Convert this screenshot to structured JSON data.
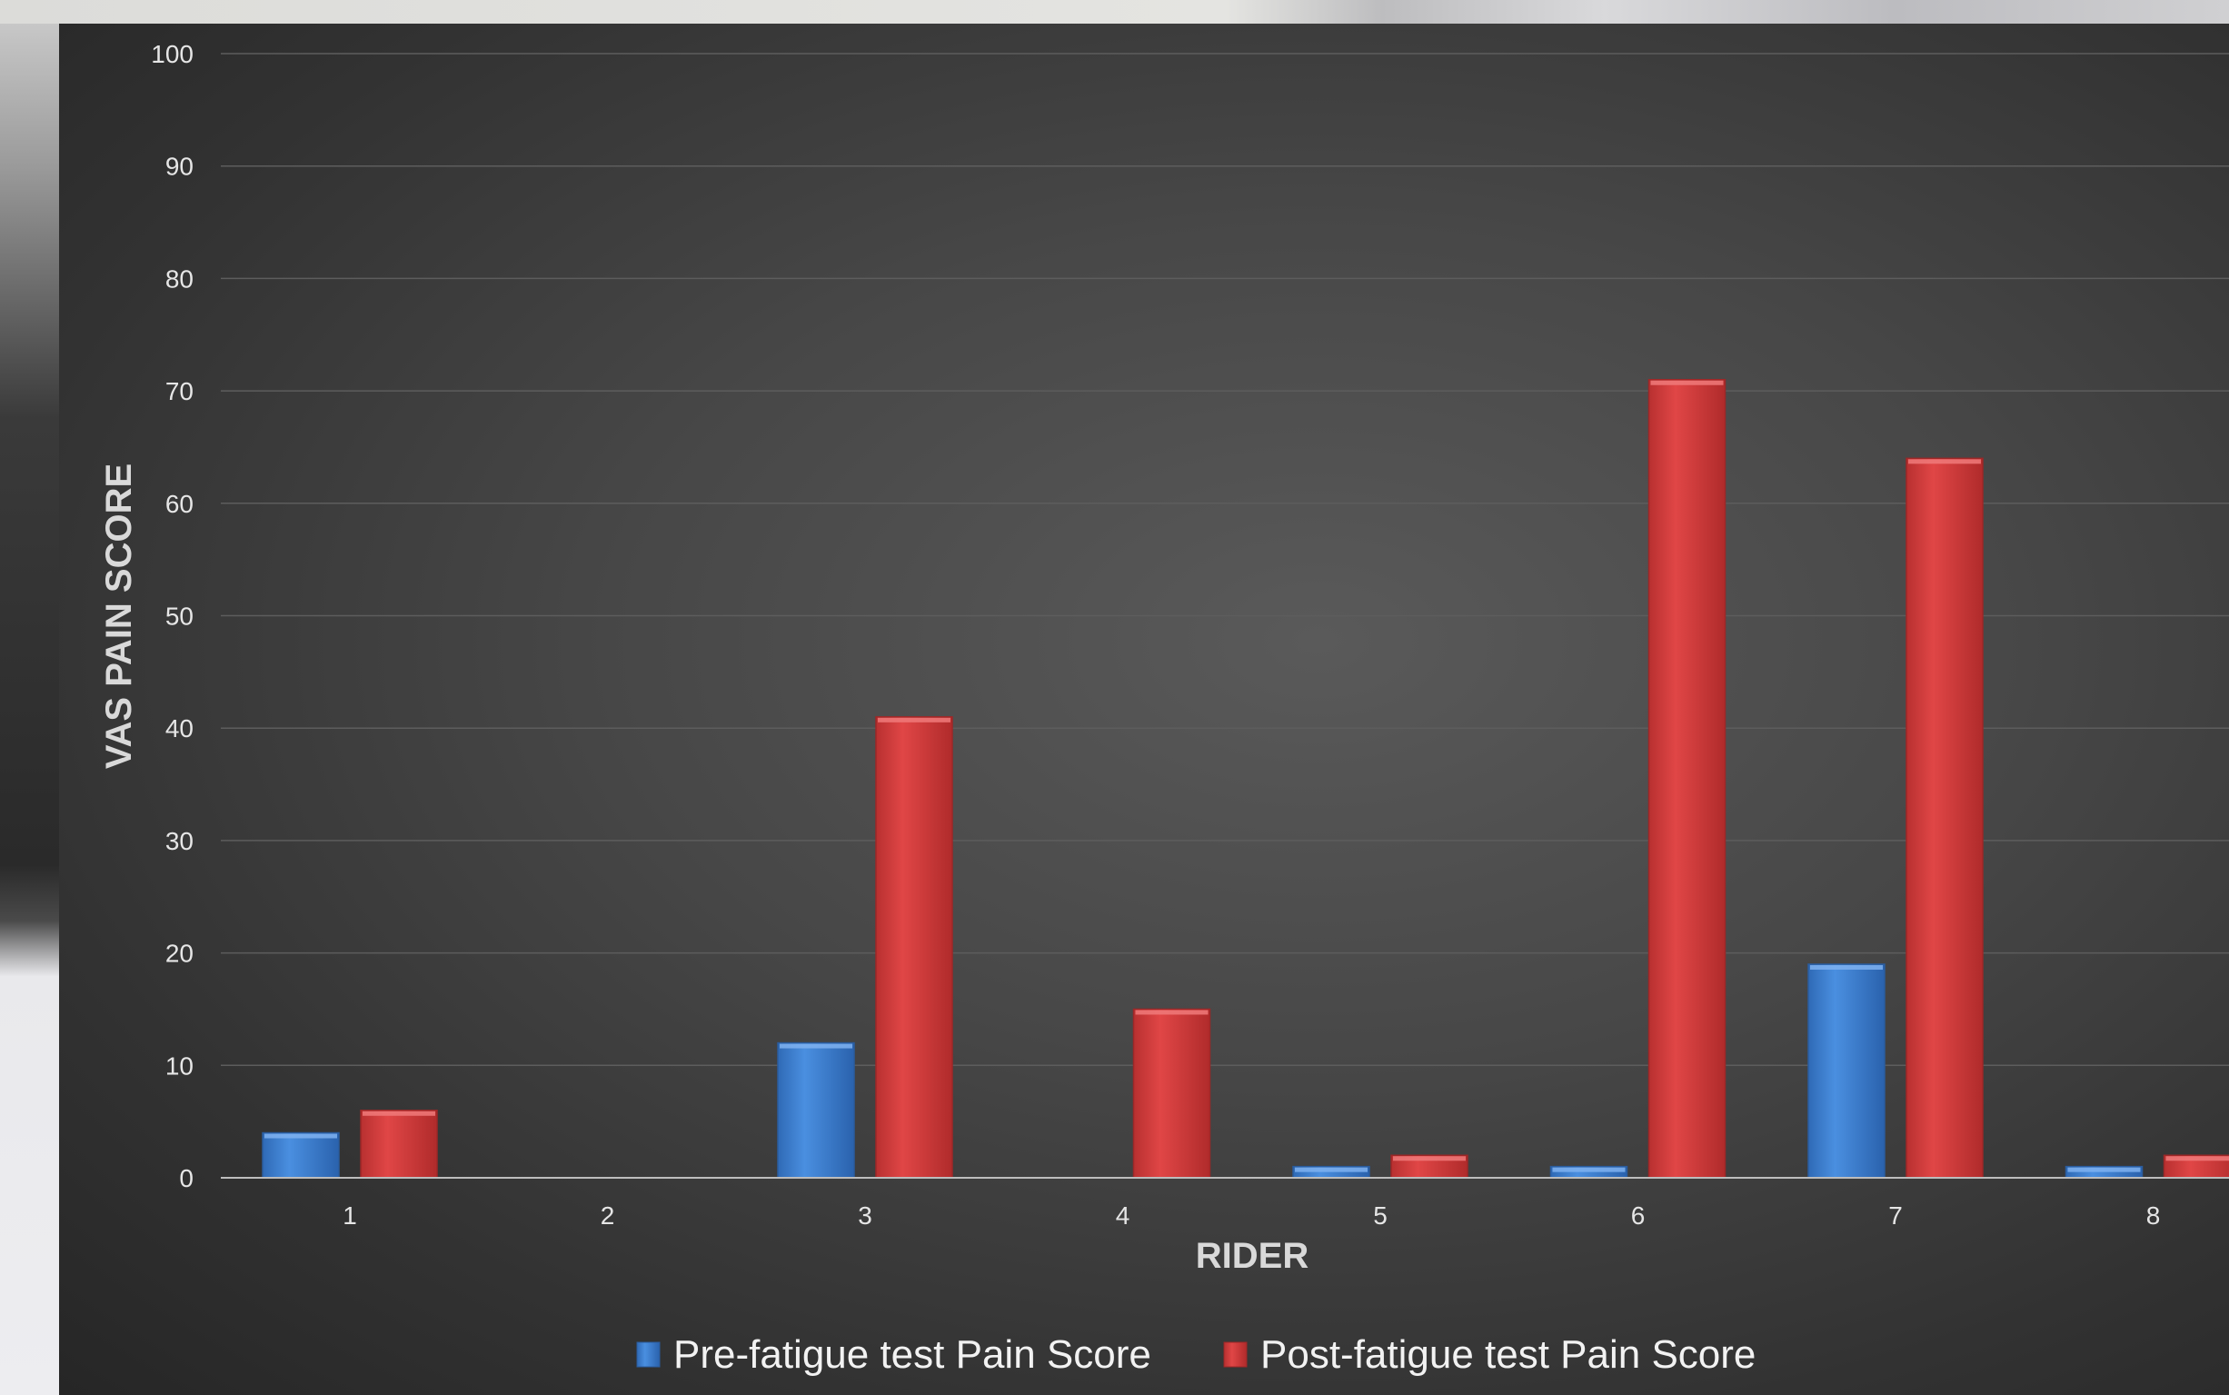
{
  "chart_data": {
    "type": "bar",
    "xlabel": "RIDER",
    "ylabel": "VAS PAIN SCORE",
    "ylim": [
      0,
      100
    ],
    "yticks": [
      0,
      10,
      20,
      30,
      40,
      50,
      60,
      70,
      80,
      90,
      100
    ],
    "categories": [
      "1",
      "2",
      "3",
      "4",
      "5",
      "6",
      "7",
      "8"
    ],
    "series": [
      {
        "name": "Pre-fatigue test Pain Score",
        "color": "#3a7fd4",
        "values": [
          4,
          0,
          12,
          0,
          1,
          1,
          19,
          1
        ]
      },
      {
        "name": "Post-fatigue test Pain Score",
        "color": "#d43a3a",
        "values": [
          6,
          0,
          41,
          15,
          2,
          71,
          64,
          2
        ]
      }
    ],
    "grid": true,
    "legend": "bottom"
  }
}
